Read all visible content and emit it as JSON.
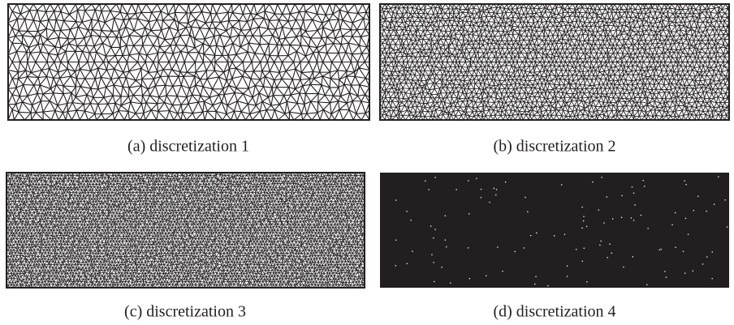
{
  "figure": {
    "panels": [
      {
        "caption": "(a) discretization 1"
      },
      {
        "caption": "(b) discretization 2"
      },
      {
        "caption": "(c) discretization 3"
      },
      {
        "caption": "(d) discretization 4"
      }
    ]
  }
}
